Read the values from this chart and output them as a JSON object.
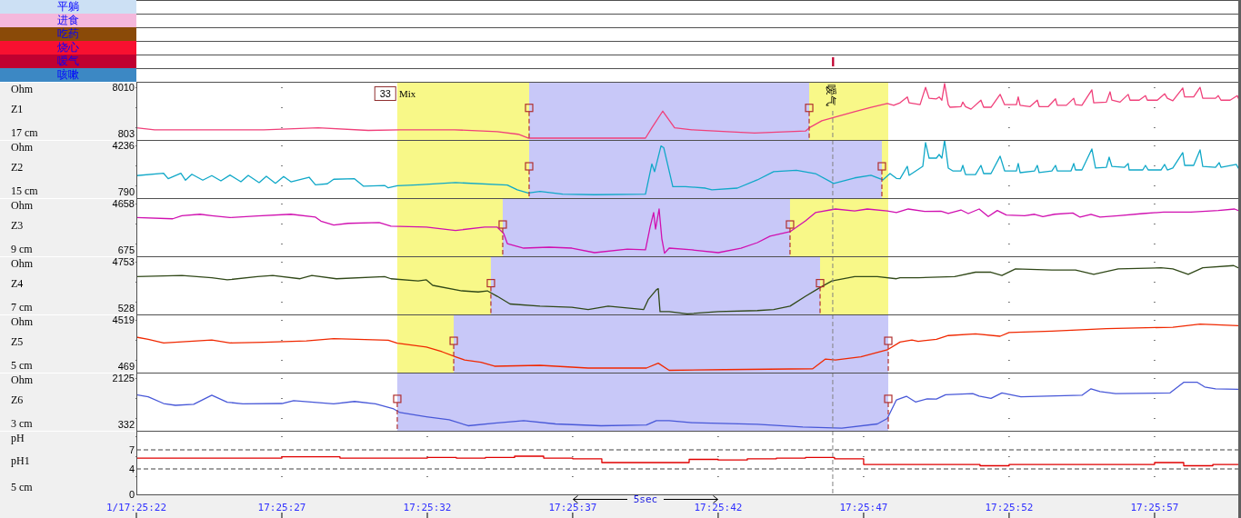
{
  "chart_data": [
    {
      "type": "bar",
      "orientation": "horizontal",
      "categories": [
        "平躺",
        "进食",
        "吃药",
        "烧心",
        "嗳气",
        "咳嗽"
      ],
      "base": [
        null,
        null,
        null,
        null,
        17.42942,
        null
      ],
      "values": [
        null,
        null,
        null,
        null,
        2e-05,
        null
      ],
      "colors": [
        "#cce0f4",
        "#f4b8dc",
        "#8a4a08",
        "#f81030",
        "#c00030",
        "#3c88c4"
      ],
      "xlim": [
        17.422778,
        17.433299
      ],
      "tick_labels": "y"
    },
    {
      "type": "line",
      "ylabel": "Z1",
      "annotations": [
        "Ohm",
        "17 cm",
        "33",
        "Mix"
      ],
      "xlim": [
        17.422778,
        17.433299
      ],
      "xticks": [
        17.422778,
        17.424167,
        17.425556,
        17.426944,
        17.428333,
        17.429722,
        17.431111,
        17.4325
      ],
      "ylim": [
        -186,
        8858
      ],
      "yticks": [
        803,
        8010
      ],
      "grid": "x",
      "tick_labels": "y",
      "bands": [
        {
          "axis": "x",
          "from": 17.425269,
          "to": 17.429957,
          "color": "#f8f888"
        },
        {
          "axis": "x",
          "from": 17.426528,
          "to": 17.429202,
          "color": "#c8c8f8"
        }
      ],
      "ref_lines": [
        {
          "axis": "x",
          "value": 17.429427,
          "label": "嗳气",
          "color": "#808080",
          "line_style": "dashed"
        }
      ],
      "series": [
        {
          "color": "#f0407a",
          "x": [
            17.422778,
            17.422952,
            17.423472,
            17.423993,
            17.424514,
            17.424992,
            17.425295,
            17.425816,
            17.426224,
            17.426424,
            17.426519,
            17.427118,
            17.427639,
            17.4277,
            17.427804,
            17.427917,
            17.428082,
            17.42842,
            17.428681,
            17.429167,
            17.429202,
            17.429323,
            17.429636,
            17.429792,
            17.429948,
            17.430009,
            17.43007,
            17.430139,
            17.430156,
            17.430261,
            17.430313,
            17.430347,
            17.430417,
            17.430443,
            17.430469,
            17.430495,
            17.43053,
            17.430547,
            17.430651,
            17.430669,
            17.430695,
            17.430747,
            17.430842,
            17.430868,
            17.430938,
            17.431025,
            17.431068,
            17.431181,
            17.431198,
            17.431216,
            17.431311,
            17.43138,
            17.431398,
            17.431485,
            17.431554,
            17.431571,
            17.431658,
            17.431728,
            17.431745,
            17.431806,
            17.431901,
            17.431919,
            17.43204,
            17.432075,
            17.432092,
            17.43217,
            17.432248,
            17.432266,
            17.432353,
            17.432413,
            17.432431,
            17.432526,
            17.432596,
            17.432622,
            17.432674,
            17.432769,
            17.432787,
            17.432873,
            17.432934,
            17.43296,
            17.433082,
            17.433108,
            17.433134,
            17.433221,
            17.43329,
            17.433299
          ],
          "values": [
            1700,
            1400,
            1400,
            1400,
            1700,
            1300,
            1400,
            1400,
            1100,
            700,
            100,
            100,
            100,
            1700,
            4300,
            1700,
            1400,
            1100,
            900,
            1200,
            1700,
            2800,
            4200,
            4900,
            5500,
            5200,
            5600,
            6500,
            5600,
            5300,
            8000,
            6300,
            6200,
            6500,
            6000,
            8600,
            5300,
            4900,
            5000,
            5700,
            5000,
            4600,
            6000,
            4900,
            4900,
            6900,
            5300,
            5300,
            6500,
            5200,
            5000,
            6000,
            5000,
            5000,
            6200,
            5200,
            5200,
            6300,
            5300,
            5200,
            7600,
            5600,
            5700,
            7300,
            6000,
            5700,
            6900,
            6000,
            6000,
            6700,
            6000,
            6000,
            7000,
            6300,
            5900,
            7900,
            6500,
            6500,
            8000,
            6300,
            6300,
            6700,
            6000,
            6000,
            6700,
            6300
          ]
        },
        {
          "type": "lollipop",
          "color": "#b03030",
          "marker": "square",
          "line_style": "dashed",
          "x": [
            17.426528,
            17.429202
          ],
          "values": [
            4800,
            4800
          ]
        }
      ]
    },
    {
      "type": "line",
      "ylabel": "Z2",
      "annotations": [
        "Ohm",
        "15 cm"
      ],
      "xlim": [
        17.422778,
        17.433299
      ],
      "xticks": [
        17.422778,
        17.424167,
        17.425556,
        17.426944,
        17.428333,
        17.429722,
        17.431111,
        17.4325
      ],
      "ylim": [
        317,
        4641
      ],
      "yticks": [
        790,
        4236
      ],
      "grid": "x",
      "tick_labels": "y",
      "bands": [
        {
          "axis": "x",
          "from": 17.425269,
          "to": 17.429957,
          "color": "#f8f888"
        },
        {
          "axis": "x",
          "from": 17.426528,
          "to": 17.429896,
          "color": "#c8c8f8"
        }
      ],
      "ref_lines": [
        {
          "axis": "x",
          "value": 17.429427,
          "color": "#808080",
          "line_style": "dashed"
        }
      ],
      "series": [
        {
          "color": "#10a8c8",
          "x": [
            17.422778,
            17.423038,
            17.423082,
            17.423203,
            17.423247,
            17.423308,
            17.423412,
            17.423498,
            17.423585,
            17.423672,
            17.423776,
            17.423846,
            17.42395,
            17.424019,
            17.424106,
            17.424184,
            17.424254,
            17.424427,
            17.424488,
            17.424601,
            17.424662,
            17.424861,
            17.424948,
            17.425148,
            17.425183,
            17.425269,
            17.425469,
            17.425825,
            17.42632,
            17.426415,
            17.426519,
            17.426632,
            17.426849,
            17.427153,
            17.427639,
            17.4277,
            17.427726,
            17.427787,
            17.427813,
            17.4279,
            17.428021,
            17.428212,
            17.428273,
            17.428516,
            17.428707,
            17.428863,
            17.42908,
            17.429262,
            17.429436,
            17.429636,
            17.429792,
            17.429905,
            17.429974,
            17.430035,
            17.43007,
            17.430139,
            17.430156,
            17.430287,
            17.430313,
            17.430347,
            17.430417,
            17.430443,
            17.430469,
            17.430495,
            17.43053,
            17.430573,
            17.430651,
            17.430669,
            17.430695,
            17.43079,
            17.430842,
            17.430868,
            17.430938,
            17.431025,
            17.431068,
            17.431181,
            17.431198,
            17.431216,
            17.431354,
            17.43138,
            17.431398,
            17.431519,
            17.431554,
            17.431571,
            17.431702,
            17.431728,
            17.431745,
            17.431806,
            17.431901,
            17.431936,
            17.43204,
            17.432066,
            17.432092,
            17.432214,
            17.432248,
            17.432257,
            17.432387,
            17.432413,
            17.432439,
            17.432561,
            17.432596,
            17.432622,
            17.432674,
            17.432769,
            17.432787,
            17.432873,
            17.432934,
            17.43296,
            17.433082,
            17.433117,
            17.433134,
            17.433281,
            17.433299
          ],
          "values": [
            1990,
            2160,
            1760,
            2160,
            1650,
            2090,
            1650,
            1990,
            1600,
            2030,
            1530,
            2010,
            1470,
            1940,
            1420,
            1920,
            1530,
            1870,
            1310,
            1380,
            1720,
            1760,
            1200,
            1260,
            1080,
            1240,
            1310,
            1470,
            1290,
            930,
            690,
            810,
            610,
            570,
            610,
            2860,
            2280,
            4190,
            4070,
            1170,
            1170,
            1060,
            930,
            1060,
            1670,
            2280,
            2380,
            2140,
            1410,
            1820,
            2010,
            1670,
            2140,
            1780,
            1760,
            2680,
            2010,
            2680,
            4440,
            3290,
            3290,
            3560,
            3290,
            4620,
            2550,
            2340,
            2340,
            2750,
            2070,
            2070,
            2750,
            2140,
            2140,
            3430,
            2340,
            2340,
            2890,
            2210,
            2340,
            2750,
            2210,
            2340,
            2750,
            2340,
            2340,
            2890,
            2410,
            2410,
            3970,
            2550,
            2610,
            3360,
            2680,
            2610,
            2890,
            2410,
            2410,
            2750,
            2410,
            2410,
            2820,
            2410,
            2550,
            3700,
            2750,
            2750,
            3900,
            2680,
            2610,
            2950,
            2610,
            2820,
            2550
          ]
        },
        {
          "type": "lollipop",
          "color": "#b03030",
          "marker": "square",
          "line_style": "dashed",
          "x": [
            17.426528,
            17.429896
          ],
          "values": [
            2680,
            2680
          ]
        }
      ]
    },
    {
      "type": "line",
      "ylabel": "Z3",
      "annotations": [
        "Ohm",
        "9 cm"
      ],
      "xlim": [
        17.422778,
        17.433299
      ],
      "xticks": [
        17.422778,
        17.424167,
        17.425556,
        17.426944,
        17.428333,
        17.429722,
        17.431111,
        17.4325
      ],
      "ylim": [
        128,
        5127
      ],
      "yticks": [
        675,
        4658
      ],
      "grid": "x",
      "tick_labels": "y",
      "bands": [
        {
          "axis": "x",
          "from": 17.425269,
          "to": 17.429957,
          "color": "#f8f888"
        },
        {
          "axis": "x",
          "from": 17.426276,
          "to": 17.429019,
          "color": "#c8c8f8"
        }
      ],
      "ref_lines": [
        {
          "axis": "x",
          "value": 17.429427,
          "color": "#808080",
          "line_style": "dashed"
        }
      ],
      "series": [
        {
          "color": "#d010b0",
          "x": [
            17.422778,
            17.423125,
            17.423212,
            17.423386,
            17.423498,
            17.423672,
            17.423933,
            17.424254,
            17.424488,
            17.42454,
            17.424662,
            17.424801,
            17.425096,
            17.425209,
            17.425547,
            17.425825,
            17.426103,
            17.426224,
            17.426285,
            17.42632,
            17.426476,
            17.426719,
            17.426936,
            17.427153,
            17.427466,
            17.427639,
            17.427683,
            17.427717,
            17.427735,
            17.427769,
            17.427795,
            17.427821,
            17.427865,
            17.428082,
            17.428334,
            17.428551,
            17.428707,
            17.428828,
            17.429019,
            17.429167,
            17.429262,
            17.429453,
            17.429636,
            17.429757,
            17.429948,
            17.430035,
            17.430148,
            17.430304,
            17.43046,
            17.43053,
            17.430651,
            17.430721,
            17.430825,
            17.430912,
            17.430998,
            17.431085,
            17.431259,
            17.431354,
            17.431433,
            17.431545,
            17.431719,
            17.431788,
            17.431893,
            17.431979,
            17.432153,
            17.432387,
            17.432587,
            17.432847,
            17.433108,
            17.433264,
            17.433299
          ],
          "values": [
            3460,
            3350,
            3620,
            3740,
            3620,
            3460,
            3590,
            3740,
            3490,
            3150,
            2810,
            2960,
            3020,
            2710,
            2630,
            2350,
            2630,
            2630,
            2080,
            1220,
            830,
            910,
            830,
            440,
            750,
            680,
            2630,
            3880,
            2470,
            4190,
            1650,
            390,
            830,
            680,
            440,
            830,
            1300,
            1850,
            2240,
            3170,
            3880,
            4190,
            4030,
            4190,
            4030,
            3880,
            4190,
            3980,
            4010,
            3800,
            4110,
            3800,
            4190,
            3540,
            4060,
            3670,
            3620,
            3740,
            3540,
            3740,
            3850,
            3490,
            3740,
            3490,
            3620,
            3800,
            3930,
            3930,
            4060,
            4190,
            4060
          ]
        },
        {
          "type": "lollipop",
          "color": "#b03030",
          "marker": "square",
          "line_style": "dashed",
          "x": [
            17.426276,
            17.429019
          ],
          "values": [
            2860,
            2860
          ]
        }
      ]
    },
    {
      "type": "line",
      "ylabel": "Z4",
      "annotations": [
        "Ohm",
        "7 cm"
      ],
      "xlim": [
        17.422778,
        17.433299
      ],
      "xticks": [
        17.422778,
        17.424167,
        17.425556,
        17.426944,
        17.428333,
        17.429722,
        17.431111,
        17.4325
      ],
      "ylim": [
        -52,
        5250
      ],
      "yticks": [
        528,
        4753
      ],
      "grid": "x",
      "tick_labels": "y",
      "bands": [
        {
          "axis": "x",
          "from": 17.425269,
          "to": 17.429957,
          "color": "#f8f888"
        },
        {
          "axis": "x",
          "from": 17.426163,
          "to": 17.429306,
          "color": "#c8c8f8"
        }
      ],
      "ref_lines": [
        {
          "axis": "x",
          "value": 17.429427,
          "color": "#808080",
          "line_style": "dashed"
        }
      ],
      "series": [
        {
          "color": "#304818",
          "x": [
            17.422778,
            17.423212,
            17.423498,
            17.423646,
            17.423933,
            17.42408,
            17.424341,
            17.424453,
            17.424688,
            17.425148,
            17.425209,
            17.425469,
            17.425547,
            17.425608,
            17.425886,
            17.426042,
            17.426129,
            17.426224,
            17.426346,
            17.426632,
            17.426936,
            17.427092,
            17.427283,
            17.427622,
            17.427665,
            17.427743,
            17.427761,
            17.427778,
            17.427865,
            17.428038,
            17.428334,
            17.428707,
            17.428863,
            17.429019,
            17.429167,
            17.429306,
            17.429419,
            17.429636,
            17.429853,
            17.430035,
            17.43007,
            17.430243,
            17.430591,
            17.43079,
            17.430938,
            17.431042,
            17.431172,
            17.431519,
            17.431745,
            17.431919,
            17.432153,
            17.432561,
            17.432674,
            17.432821,
            17.43296,
            17.433255,
            17.433299
          ],
          "values": [
            3400,
            3500,
            3300,
            3100,
            3400,
            3500,
            3200,
            3500,
            3200,
            3400,
            3200,
            3000,
            3100,
            2600,
            2100,
            2000,
            2100,
            1600,
            900,
            700,
            600,
            400,
            700,
            400,
            1300,
            2200,
            2300,
            200,
            200,
            0,
            200,
            300,
            400,
            700,
            1600,
            2400,
            3000,
            3400,
            3400,
            3200,
            3300,
            3300,
            3400,
            3800,
            3800,
            3500,
            4100,
            4000,
            4000,
            3600,
            4100,
            4200,
            4100,
            3600,
            4200,
            4400,
            4200
          ]
        },
        {
          "type": "lollipop",
          "color": "#b03030",
          "marker": "square",
          "line_style": "dashed",
          "x": [
            17.426163,
            17.429306
          ],
          "values": [
            2800,
            2800
          ]
        }
      ]
    },
    {
      "type": "line",
      "ylabel": "Z5",
      "annotations": [
        "Ohm",
        "5 cm"
      ],
      "xlim": [
        17.422778,
        17.433299
      ],
      "xticks": [
        17.422778,
        17.424167,
        17.425556,
        17.426944,
        17.428333,
        17.429722,
        17.431111,
        17.4325
      ],
      "ylim": [
        -87,
        4996
      ],
      "yticks": [
        469,
        4519
      ],
      "grid": "x",
      "tick_labels": "y",
      "bands": [
        {
          "axis": "x",
          "from": 17.425269,
          "to": 17.429957,
          "color": "#f8f888"
        },
        {
          "axis": "x",
          "from": 17.425808,
          "to": 17.429957,
          "color": "#c8c8f8"
        }
      ],
      "ref_lines": [
        {
          "axis": "x",
          "value": 17.429427,
          "color": "#808080",
          "line_style": "dashed"
        }
      ],
      "series": [
        {
          "color": "#f02800",
          "x": [
            17.422778,
            17.422891,
            17.423038,
            17.423498,
            17.423672,
            17.423993,
            17.424401,
            17.424662,
            17.425183,
            17.425269,
            17.425547,
            17.425695,
            17.425825,
            17.425912,
            17.426068,
            17.426198,
            17.426632,
            17.427092,
            17.427648,
            17.427761,
            17.427865,
            17.428394,
            17.429236,
            17.429358,
            17.429453,
            17.429696,
            17.429948,
            17.43007,
            17.430183,
            17.430243,
            17.430417,
            17.43053,
            17.43079,
            17.431025,
            17.431111,
            17.431519,
            17.43204,
            17.432674,
            17.432934,
            17.433299
          ],
          "values": [
            3010,
            2830,
            2510,
            2770,
            2510,
            2560,
            2690,
            2880,
            2750,
            2480,
            2150,
            1740,
            1300,
            1020,
            820,
            470,
            550,
            310,
            310,
            740,
            110,
            170,
            250,
            1100,
            1020,
            1300,
            1900,
            2580,
            2770,
            2640,
            2830,
            3150,
            3300,
            3090,
            3410,
            3540,
            3750,
            3880,
            4150,
            4020
          ]
        },
        {
          "type": "lollipop",
          "color": "#b03030",
          "marker": "square",
          "line_style": "dashed",
          "x": [
            17.425808,
            17.429957
          ],
          "values": [
            2690,
            2690
          ]
        }
      ]
    },
    {
      "type": "line",
      "ylabel": "Z6",
      "annotations": [
        "Ohm",
        "3 cm"
      ],
      "xlim": [
        17.422778,
        17.433299
      ],
      "xticks": [
        17.422778,
        17.424167,
        17.425556,
        17.426944,
        17.428333,
        17.429722,
        17.431111,
        17.4325
      ],
      "ylim": [
        86,
        2336
      ],
      "yticks": [
        332,
        2125
      ],
      "grid": "x",
      "tick_labels": "y",
      "bands": [
        {
          "axis": "x",
          "from": 17.425269,
          "to": 17.429957,
          "color": "#c8c8f8"
        }
      ],
      "ref_lines": [
        {
          "axis": "x",
          "value": 17.429427,
          "color": "#808080",
          "line_style": "dashed"
        }
      ],
      "series": [
        {
          "color": "#4858d8",
          "x": [
            17.422778,
            17.422891,
            17.423038,
            17.423151,
            17.423325,
            17.423498,
            17.423646,
            17.423794,
            17.424167,
            17.42428,
            17.424662,
            17.424861,
            17.425061,
            17.425235,
            17.425295,
            17.425547,
            17.425764,
            17.425946,
            17.426198,
            17.426476,
            17.42678,
            17.427214,
            17.427648,
            17.427743,
            17.427865,
            17.428082,
            17.428707,
            17.429141,
            17.429514,
            17.429853,
            17.429948,
            17.430035,
            17.43013,
            17.430217,
            17.43033,
            17.430417,
            17.430504,
            17.430764,
            17.430825,
            17.430938,
            17.431042,
            17.431224,
            17.431806,
            17.431893,
            17.431979,
            17.432127,
            17.432648,
            17.432778,
            17.432908,
            17.432978,
            17.433082,
            17.433299
          ],
          "values": [
            1480,
            1400,
            1140,
            1070,
            1110,
            1460,
            1190,
            1130,
            1140,
            1250,
            1130,
            1220,
            1130,
            930,
            790,
            630,
            510,
            280,
            380,
            480,
            350,
            280,
            310,
            480,
            480,
            400,
            340,
            230,
            190,
            350,
            560,
            1280,
            1420,
            1200,
            1320,
            1310,
            1480,
            1520,
            1430,
            1340,
            1550,
            1400,
            1460,
            1710,
            1600,
            1520,
            1550,
            1960,
            1960,
            1780,
            1710,
            1690
          ]
        },
        {
          "type": "lollipop",
          "color": "#b03030",
          "marker": "square",
          "line_style": "dashed",
          "x": [
            17.425269,
            17.429957
          ],
          "values": [
            1320,
            1320
          ]
        }
      ]
    },
    {
      "type": "step",
      "ylabel": "pH1",
      "annotations": [
        "pH",
        "5 cm",
        "5sec"
      ],
      "xlim": [
        17.422778,
        17.433299
      ],
      "xticks": [
        {
          "value": 17.422778,
          "label": "1/17:25:22"
        },
        {
          "value": 17.424167,
          "label": "17:25:27"
        },
        {
          "value": 17.425556,
          "label": "17:25:32"
        },
        {
          "value": 17.426944,
          "label": "17:25:37"
        },
        {
          "value": 17.428333,
          "label": "17:25:42"
        },
        {
          "value": 17.429722,
          "label": "17:25:47"
        },
        {
          "value": 17.431111,
          "label": "17:25:52"
        },
        {
          "value": 17.4325,
          "label": "17:25:57"
        }
      ],
      "ylim": [
        0,
        10
      ],
      "yticks": [
        0,
        4,
        7
      ],
      "grid": "x",
      "ref_lines": [
        {
          "axis": "y",
          "value": 7,
          "color": "#404040",
          "line_style": "dashed"
        },
        {
          "axis": "y",
          "value": 4,
          "color": "#404040",
          "line_style": "dashed"
        },
        {
          "axis": "x",
          "value": 17.429427,
          "color": "#808080",
          "line_style": "dashed"
        }
      ],
      "series": [
        {
          "color": "#e00000",
          "x": [
            17.422778,
            17.424167,
            17.424722,
            17.425556,
            17.425833,
            17.426111,
            17.426389,
            17.426667,
            17.426944,
            17.427222,
            17.428056,
            17.428333,
            17.428611,
            17.428889,
            17.429167,
            17.429444,
            17.429722,
            17.430833,
            17.431111,
            17.4325,
            17.432778,
            17.433056,
            17.433299
          ],
          "values": [
            5.7,
            5.9,
            5.7,
            5.8,
            5.7,
            5.8,
            6.0,
            5.7,
            5.6,
            5.0,
            5.5,
            5.4,
            5.6,
            5.7,
            5.8,
            5.6,
            4.7,
            4.5,
            4.7,
            5.0,
            4.5,
            4.7,
            4.7
          ]
        }
      ]
    }
  ]
}
